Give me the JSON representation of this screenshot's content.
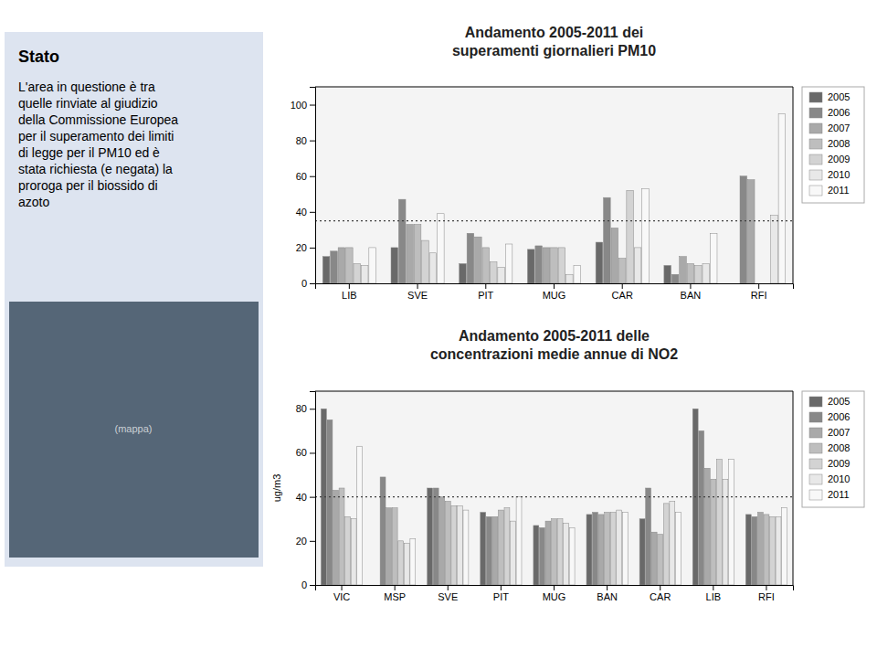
{
  "chart_data": [
    {
      "type": "bar",
      "title": "Andamento 2005-2011 dei\nsuperamenti giornalieri PM10",
      "annotations": [
        "Stato",
        "L'area in questione è tra\nquelle rinviate al giudizio\ndella Commissione Europea\nper il superamento dei limiti\ndi legge per il PM10 ed è\nstata richiesta (e negata) la\nproroga per il biossido di\nazoto",
        "(mappa)"
      ],
      "categories": [
        "LIB",
        "SVE",
        "PIT",
        "MUG",
        "CAR",
        "BAN",
        "RFI"
      ],
      "series": [
        {
          "name": "2005",
          "color": "#696969",
          "values": [
            15,
            20,
            11,
            19,
            23,
            10,
            0
          ]
        },
        {
          "name": "2006",
          "color": "#888888",
          "values": [
            18,
            47,
            28,
            21,
            48,
            5,
            60
          ]
        },
        {
          "name": "2007",
          "color": "#a9a9a9",
          "values": [
            20,
            33,
            26,
            20,
            31,
            15,
            58
          ]
        },
        {
          "name": "2008",
          "color": "#bebebe",
          "values": [
            20,
            33,
            20,
            20,
            14,
            11,
            0
          ]
        },
        {
          "name": "2009",
          "color": "#d3d3d3",
          "values": [
            11,
            24,
            12,
            20,
            52,
            10,
            0
          ]
        },
        {
          "name": "2010",
          "color": "#e8e8e8",
          "values": [
            10,
            17,
            9,
            5,
            20,
            11,
            38
          ]
        },
        {
          "name": "2011",
          "color": "#f8f8f8",
          "values": [
            20,
            39,
            22,
            10,
            53,
            28,
            95
          ]
        }
      ],
      "threshold": 35,
      "ylim": [
        0,
        110
      ],
      "yticks": [
        0,
        20,
        40,
        60,
        80,
        100
      ],
      "grid": false,
      "legend": "right"
    },
    {
      "type": "bar",
      "title": "Andamento 2005-2011 delle\nconcentrazioni medie annue di NO2",
      "ylabel": "ug/m3",
      "categories": [
        "VIC",
        "MSP",
        "SVE",
        "PIT",
        "MUG",
        "BAN",
        "CAR",
        "LIB",
        "RFI"
      ],
      "series": [
        {
          "name": "2005",
          "color": "#696969",
          "values": [
            80,
            0,
            44,
            33,
            27,
            32,
            30,
            80,
            32
          ]
        },
        {
          "name": "2006",
          "color": "#888888",
          "values": [
            75,
            49,
            44,
            31,
            26,
            33,
            44,
            70,
            31
          ]
        },
        {
          "name": "2007",
          "color": "#a9a9a9",
          "values": [
            43,
            35,
            40,
            31,
            29,
            32,
            24,
            53,
            33
          ]
        },
        {
          "name": "2008",
          "color": "#bebebe",
          "values": [
            44,
            35,
            38,
            34,
            30,
            33,
            23,
            48,
            32
          ]
        },
        {
          "name": "2009",
          "color": "#d3d3d3",
          "values": [
            31,
            20,
            36,
            35,
            30,
            33,
            37,
            57,
            31
          ]
        },
        {
          "name": "2010",
          "color": "#e8e8e8",
          "values": [
            30,
            19,
            36,
            29,
            28,
            34,
            38,
            48,
            31
          ]
        },
        {
          "name": "2011",
          "color": "#f8f8f8",
          "values": [
            63,
            21,
            34,
            40,
            26,
            33,
            33,
            57,
            35
          ]
        }
      ],
      "threshold": 40,
      "ylim": [
        0,
        88
      ],
      "yticks": [
        0,
        20,
        40,
        60,
        80
      ],
      "grid": false,
      "legend": "right"
    }
  ]
}
